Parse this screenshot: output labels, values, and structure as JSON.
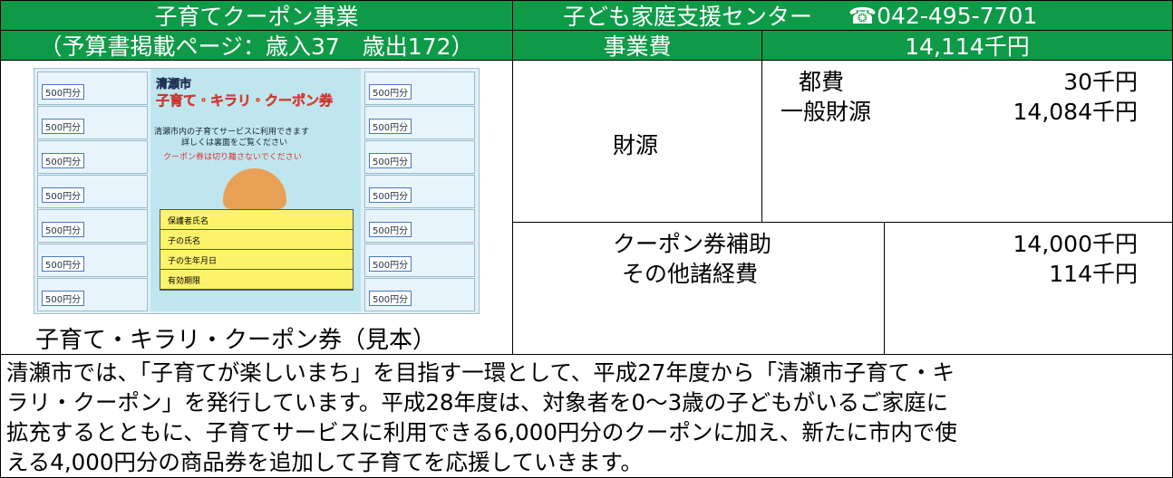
{
  "header": {
    "title": "子育てクーポン事業",
    "subtitle": "（予算書掲載ページ：歳入37　歳出172）",
    "department": "子ども家庭支援センター",
    "phone": "☎042-495-7701",
    "cost_label": "事業費",
    "cost_value": "14,114千円"
  },
  "funding": {
    "label": "財源",
    "items": [
      {
        "name": "都費",
        "amount": "30千円"
      },
      {
        "name": "一般財源",
        "amount": "14,084千円"
      }
    ]
  },
  "expenses": [
    {
      "name": "クーポン券補助",
      "amount": "14,000千円"
    },
    {
      "name": "その他諸経費",
      "amount": "114千円"
    }
  ],
  "image": {
    "caption": "子育て・キラリ・クーポン券（見本）",
    "city": "清瀬市",
    "coupon_title": "子育て・キラリ・クーポン券",
    "coupon_unit": "500円分",
    "note1": "清瀬市内の子育てサービスに利用できます",
    "note2": "詳しくは裏面をご覧ください",
    "warning": "クーポン券は切り離さないでください",
    "fields": [
      "保護者氏名",
      "子の氏名",
      "子の生年月日",
      "有効期限"
    ]
  },
  "description": {
    "lines": [
      "清瀬市では、「子育てが楽しいまち」を目指す一環として、平成27年度から「清瀬市子育て・キ",
      "ラリ・クーポン」を発行しています。平成28年度は、対象者を0～3歳の子どもがいるご家庭に",
      "拡充するとともに、子育てサービスに利用できる6,000円分のクーポンに加え、新たに市内で使",
      "える4,000円分の商品券を追加して子育てを応援していきます。"
    ]
  }
}
